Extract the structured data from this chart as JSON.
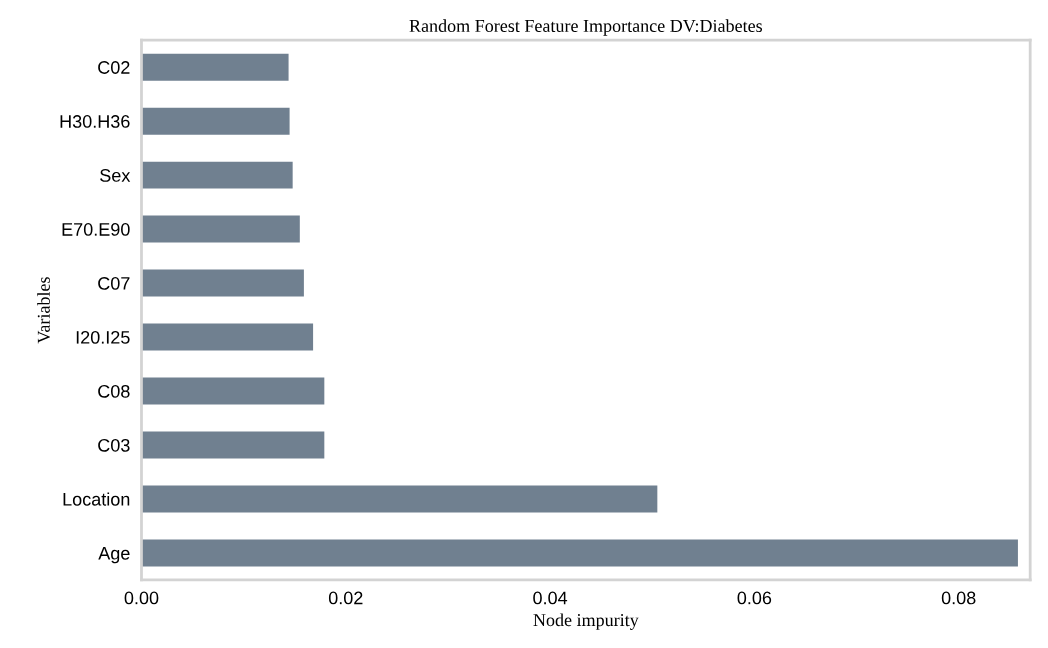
{
  "chart_data": {
    "type": "bar",
    "orientation": "horizontal",
    "title": "Random Forest Feature Importance DV:Diabetes",
    "xlabel": "Node impurity",
    "ylabel": "Variables",
    "categories": [
      "C02",
      "H30.H36",
      "Sex",
      "E70.E90",
      "C07",
      "I20.I25",
      "C08",
      "C03",
      "Location",
      "Age"
    ],
    "values": [
      0.0144,
      0.0145,
      0.0148,
      0.0155,
      0.0159,
      0.0168,
      0.0179,
      0.0179,
      0.0505,
      0.0858
    ],
    "color": "#708090",
    "xlim": [
      0,
      0.087
    ],
    "xticks": [
      {
        "value": 0,
        "label": "0.00"
      },
      {
        "value": 0.02,
        "label": "0.02"
      },
      {
        "value": 0.04,
        "label": "0.04"
      },
      {
        "value": 0.06,
        "label": "0.06"
      },
      {
        "value": 0.08,
        "label": "0.08"
      }
    ],
    "grid": false,
    "legend": false
  }
}
